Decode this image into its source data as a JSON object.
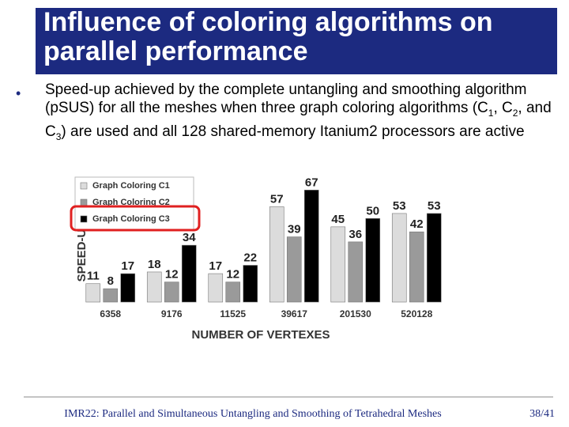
{
  "slide_title": "Influence of coloring algorithms on parallel performance",
  "bullet": {
    "symbol": "•",
    "parts": [
      "Speed-up achieved by the complete untangling and smoothing algorithm (pSUS) for all the meshes when three graph coloring algorithms (C",
      "1",
      ", C",
      "2",
      ", and C",
      "3",
      ") are used and all 128 shared-memory Itanium2 processors are active"
    ]
  },
  "chart_data": {
    "type": "bar",
    "y_label": "SPEED-UP",
    "x_label": "NUMBER OF VERTEXES",
    "categories": [
      "6358",
      "9176",
      "11525",
      "39617",
      "201530",
      "520128"
    ],
    "series": [
      {
        "name": "Graph Coloring C1",
        "color": "#dcdcdc",
        "values": [
          11,
          18,
          17,
          57,
          45,
          53
        ]
      },
      {
        "name": "Graph Coloring C2",
        "color": "#9a9a9a",
        "values": [
          8,
          12,
          12,
          39,
          36,
          42
        ]
      },
      {
        "name": "Graph Coloring C3",
        "color": "#000000",
        "values": [
          17,
          34,
          22,
          67,
          50,
          53
        ]
      }
    ],
    "ylim": [
      0,
      70
    ],
    "legend": "upper-left"
  },
  "footer": {
    "text": "IMR22: Parallel and Simultaneous Untangling and Smoothing of Tetrahedral Meshes",
    "page": "38/41"
  }
}
